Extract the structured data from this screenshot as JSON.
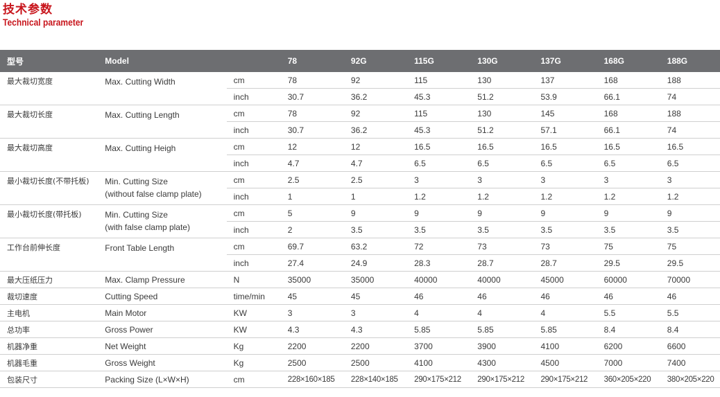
{
  "title": {
    "cn": "技术参数",
    "en": "Technical parameter"
  },
  "header": {
    "col_cn": "型号",
    "col_en": "Model",
    "col_unit": "",
    "models": [
      "78",
      "92G",
      "115G",
      "130G",
      "137G",
      "168G",
      "188G"
    ]
  },
  "rows": [
    {
      "cn": "最大裁切宽度",
      "en": "Max. Cutting Width",
      "units": [
        {
          "unit": "cm",
          "values": [
            "78",
            "92",
            "115",
            "130",
            "137",
            "168",
            "188"
          ]
        },
        {
          "unit": "inch",
          "values": [
            "30.7",
            "36.2",
            "45.3",
            "51.2",
            "53.9",
            "66.1",
            "74"
          ]
        }
      ]
    },
    {
      "cn": "最大裁切长度",
      "en": "Max. Cutting Length",
      "units": [
        {
          "unit": "cm",
          "values": [
            "78",
            "92",
            "115",
            "130",
            "145",
            "168",
            "188"
          ]
        },
        {
          "unit": "inch",
          "values": [
            "30.7",
            "36.2",
            "45.3",
            "51.2",
            "57.1",
            "66.1",
            "74"
          ]
        }
      ]
    },
    {
      "cn": "最大裁切高度",
      "en": "Max. Cutting Heigh",
      "units": [
        {
          "unit": "cm",
          "values": [
            "12",
            "12",
            "16.5",
            "16.5",
            "16.5",
            "16.5",
            "16.5"
          ]
        },
        {
          "unit": "inch",
          "values": [
            "4.7",
            "4.7",
            "6.5",
            "6.5",
            "6.5",
            "6.5",
            "6.5"
          ]
        }
      ]
    },
    {
      "cn": "最小裁切长度(不带托板)",
      "en": "Min. Cutting Size",
      "en2": "(without false clamp plate)",
      "units": [
        {
          "unit": "cm",
          "values": [
            "2.5",
            "2.5",
            "3",
            "3",
            "3",
            "3",
            "3"
          ]
        },
        {
          "unit": "inch",
          "values": [
            "1",
            "1",
            "1.2",
            "1.2",
            "1.2",
            "1.2",
            "1.2"
          ]
        }
      ]
    },
    {
      "cn": "最小裁切长度(带托板)",
      "en": "Min. Cutting Size",
      "en2": "(with false clamp plate)",
      "units": [
        {
          "unit": "cm",
          "values": [
            "5",
            "9",
            "9",
            "9",
            "9",
            "9",
            "9"
          ]
        },
        {
          "unit": "inch",
          "values": [
            "2",
            "3.5",
            "3.5",
            "3.5",
            "3.5",
            "3.5",
            "3.5"
          ]
        }
      ]
    },
    {
      "cn": "工作台前伸长度",
      "en": "Front Table Length",
      "units": [
        {
          "unit": "cm",
          "values": [
            "69.7",
            "63.2",
            "72",
            "73",
            "73",
            "75",
            "75"
          ]
        },
        {
          "unit": "inch",
          "values": [
            "27.4",
            "24.9",
            "28.3",
            "28.7",
            "28.7",
            "29.5",
            "29.5"
          ]
        }
      ]
    },
    {
      "cn": "最大压纸压力",
      "en": "Max. Clamp Pressure",
      "units": [
        {
          "unit": "N",
          "values": [
            "35000",
            "35000",
            "40000",
            "40000",
            "45000",
            "60000",
            "70000"
          ]
        }
      ]
    },
    {
      "cn": "裁切速度",
      "en": "Cutting Speed",
      "units": [
        {
          "unit": "time/min",
          "values": [
            "45",
            "45",
            "46",
            "46",
            "46",
            "46",
            "46"
          ]
        }
      ]
    },
    {
      "cn": "主电机",
      "en": "Main Motor",
      "units": [
        {
          "unit": "KW",
          "values": [
            "3",
            "3",
            "4",
            "4",
            "4",
            "5.5",
            "5.5"
          ]
        }
      ]
    },
    {
      "cn": "总功率",
      "en": "Gross Power",
      "units": [
        {
          "unit": "KW",
          "values": [
            "4.3",
            "4.3",
            "5.85",
            "5.85",
            "5.85",
            "8.4",
            "8.4"
          ]
        }
      ]
    },
    {
      "cn": "机器净重",
      "en": "Net Weight",
      "units": [
        {
          "unit": "Kg",
          "values": [
            "2200",
            "2200",
            "3700",
            "3900",
            "4100",
            "6200",
            "6600"
          ]
        }
      ]
    },
    {
      "cn": "机器毛重",
      "en": "Gross Weight",
      "units": [
        {
          "unit": "Kg",
          "values": [
            "2500",
            "2500",
            "4100",
            "4300",
            "4500",
            "7000",
            "7400"
          ]
        }
      ]
    },
    {
      "cn": "包装尺寸",
      "en": "Packing Size (L×W×H)",
      "units": [
        {
          "unit": "cm",
          "values": [
            "228×160×185",
            "228×140×185",
            "290×175×212",
            "290×175×212",
            "290×175×212",
            "360×205×220",
            "380×205×220"
          ]
        }
      ]
    }
  ]
}
